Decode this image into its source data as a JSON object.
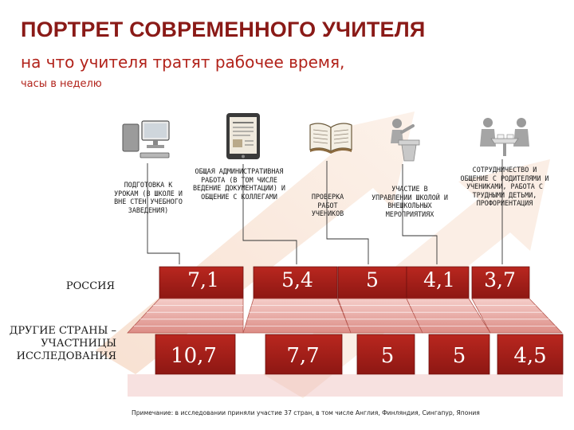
{
  "header": {
    "title": "ПОРТРЕТ СОВРЕМЕННОГО УЧИТЕЛЯ",
    "subtitle": "на что учителя тратят рабочее время,",
    "unit": "часы в неделю"
  },
  "chart_data": {
    "type": "table",
    "categories": [
      "ПОДГОТОВКА К УРОКАМ (В ШКОЛЕ И ВНЕ СТЕН УЧЕБНОГО ЗАВЕДЕНИЯ)",
      "ОБЩАЯ АДМИНИСТРАТИВНАЯ РАБОТА (В ТОМ ЧИСЛЕ ВЕДЕНИЕ ДОКУМЕНТАЦИИ) И ОБЩЕНИЕ С КОЛЛЕГАМИ",
      "ПРОВЕРКА РАБОТ УЧЕНИКОВ",
      "УЧАСТИЕ В УПРАВЛЕНИИ ШКОЛОЙ И ВНЕШКОЛЬНЫХ МЕРОПРИЯТИЯХ",
      "СОТРУДНИЧЕСТВО И ОБЩЕНИЕ С РОДИТЕЛЯМИ И УЧЕНИКАМИ, РАБОТА С ТРУДНЫМИ ДЕТЬМИ, ПРОФОРИЕНТАЦИЯ"
    ],
    "series": [
      {
        "name": "РОССИЯ",
        "values": [
          "7,1",
          "5,4",
          "5",
          "4,1",
          "3,7"
        ]
      },
      {
        "name": "ДРУГИЕ СТРАНЫ – УЧАСТНИЦЫ ИССЛЕДОВАНИЯ",
        "values": [
          "10,7",
          "7,7",
          "5",
          "5",
          "4,5"
        ]
      }
    ]
  },
  "icons": [
    "computer-icon",
    "tablet-icon",
    "book-icon",
    "speaker-icon",
    "meeting-icon"
  ],
  "colors": {
    "title": "#8a1a17",
    "accent": "#b2231b",
    "bar": "#a3201a",
    "bar_light": "#e9aaa5"
  },
  "footer": {
    "note": "Примечание: в исследовании приняли участие 37 стран, в том числе Англия, Финляндия, Сингапур, Япония"
  }
}
